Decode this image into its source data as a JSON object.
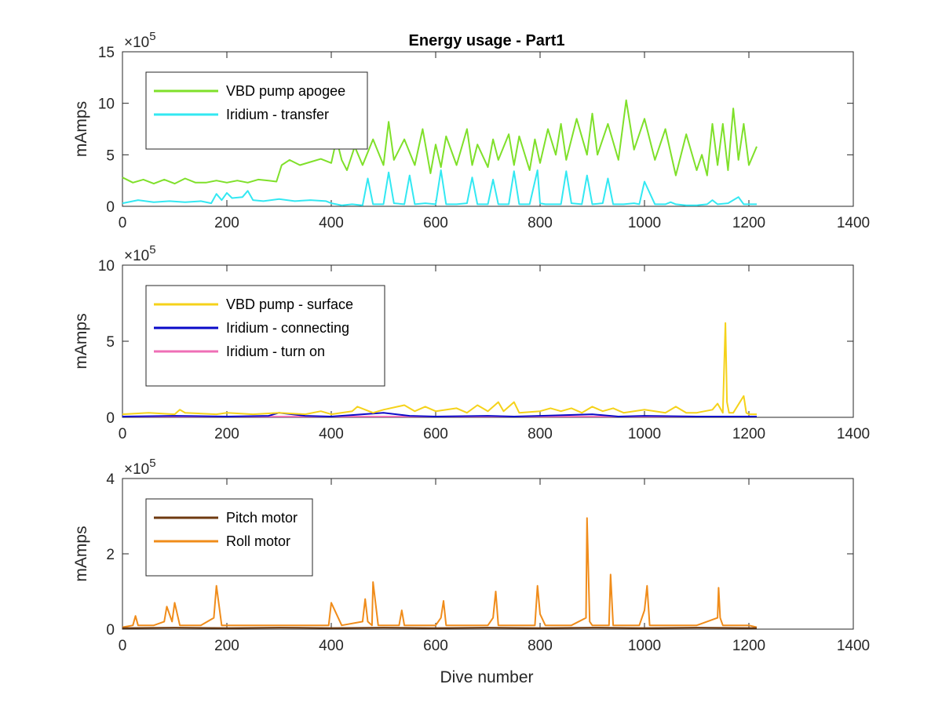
{
  "figure": {
    "title": "Energy usage - Part1",
    "xlabel": "Dive number"
  },
  "chart_data": [
    {
      "type": "line",
      "title": "Energy usage - Part1",
      "xlabel": "",
      "ylabel": "mAmps",
      "y_multiplier": "×10",
      "y_exponent": "5",
      "xlim": [
        0,
        1400
      ],
      "ylim": [
        0,
        15
      ],
      "xticks": [
        "0",
        "200",
        "400",
        "600",
        "800",
        "1000",
        "1200",
        "1400"
      ],
      "yticks": [
        "0",
        "5",
        "10",
        "15"
      ],
      "grid": false,
      "legend_position": "top-left",
      "series": [
        {
          "name": "VBD pump apogee",
          "color": "#7fe02a",
          "x": [
            0,
            20,
            40,
            60,
            80,
            100,
            120,
            140,
            160,
            180,
            200,
            220,
            240,
            260,
            280,
            295,
            305,
            320,
            340,
            360,
            380,
            400,
            410,
            420,
            430,
            445,
            460,
            480,
            500,
            510,
            520,
            540,
            560,
            575,
            590,
            600,
            610,
            620,
            640,
            660,
            670,
            680,
            700,
            710,
            720,
            740,
            750,
            760,
            780,
            790,
            800,
            815,
            830,
            840,
            850,
            870,
            890,
            900,
            910,
            930,
            950,
            965,
            980,
            1000,
            1020,
            1040,
            1060,
            1080,
            1100,
            1110,
            1120,
            1130,
            1140,
            1150,
            1160,
            1170,
            1180,
            1190,
            1200,
            1215
          ],
          "values": [
            2.8,
            2.3,
            2.6,
            2.2,
            2.6,
            2.2,
            2.7,
            2.3,
            2.3,
            2.5,
            2.3,
            2.5,
            2.3,
            2.6,
            2.5,
            2.4,
            4.0,
            4.5,
            4.0,
            4.3,
            4.6,
            4.2,
            6.5,
            4.5,
            3.5,
            5.8,
            4.0,
            6.5,
            4.0,
            8.2,
            4.5,
            6.5,
            4.0,
            7.5,
            3.2,
            6.0,
            3.8,
            6.8,
            4.0,
            7.5,
            4.0,
            6.0,
            3.8,
            6.5,
            4.5,
            7.0,
            4.0,
            6.8,
            3.5,
            6.5,
            4.2,
            7.5,
            5.0,
            8.0,
            4.5,
            8.5,
            5.0,
            9.0,
            5.0,
            8.0,
            4.5,
            10.3,
            5.5,
            8.5,
            4.5,
            7.5,
            3.0,
            7.0,
            3.5,
            5.0,
            3.0,
            8.0,
            4.0,
            8.0,
            3.5,
            9.5,
            4.5,
            8.0,
            4.0,
            5.8
          ]
        },
        {
          "name": "Iridium - transfer",
          "color": "#33e8f2",
          "x": [
            0,
            30,
            60,
            90,
            120,
            150,
            170,
            180,
            190,
            200,
            210,
            230,
            240,
            250,
            270,
            300,
            330,
            360,
            390,
            400,
            420,
            440,
            460,
            470,
            480,
            500,
            510,
            520,
            540,
            550,
            560,
            580,
            600,
            610,
            620,
            640,
            660,
            670,
            680,
            700,
            710,
            720,
            740,
            750,
            760,
            780,
            795,
            800,
            810,
            840,
            850,
            860,
            880,
            890,
            900,
            920,
            930,
            940,
            960,
            980,
            990,
            1000,
            1020,
            1040,
            1050,
            1060,
            1080,
            1100,
            1120,
            1130,
            1140,
            1160,
            1180,
            1190,
            1200,
            1215
          ],
          "values": [
            0.3,
            0.6,
            0.4,
            0.5,
            0.4,
            0.5,
            0.3,
            1.2,
            0.6,
            1.3,
            0.8,
            0.9,
            1.5,
            0.6,
            0.5,
            0.7,
            0.5,
            0.6,
            0.5,
            0.3,
            0.1,
            0.2,
            0.1,
            2.7,
            0.2,
            0.2,
            3.3,
            0.3,
            0.2,
            3.0,
            0.2,
            0.3,
            0.2,
            3.5,
            0.2,
            0.2,
            0.3,
            2.8,
            0.2,
            0.2,
            2.6,
            0.2,
            0.2,
            3.4,
            0.2,
            0.2,
            3.5,
            0.3,
            0.2,
            0.2,
            3.4,
            0.3,
            0.2,
            3.0,
            0.2,
            0.3,
            2.7,
            0.2,
            0.2,
            0.3,
            0.2,
            2.4,
            0.2,
            0.2,
            0.4,
            0.2,
            0.1,
            0.1,
            0.2,
            0.6,
            0.2,
            0.3,
            0.9,
            0.2,
            0.2,
            0.2
          ]
        }
      ]
    },
    {
      "type": "line",
      "xlabel": "",
      "ylabel": "mAmps",
      "y_multiplier": "×10",
      "y_exponent": "5",
      "xlim": [
        0,
        1400
      ],
      "ylim": [
        0,
        10
      ],
      "xticks": [
        "0",
        "200",
        "400",
        "600",
        "800",
        "1000",
        "1200",
        "1400"
      ],
      "yticks": [
        "0",
        "5",
        "10"
      ],
      "grid": false,
      "legend_position": "top-left",
      "series": [
        {
          "name": "VBD pump - surface",
          "color": "#f5d21a",
          "x": [
            0,
            50,
            100,
            110,
            120,
            180,
            200,
            250,
            300,
            350,
            380,
            400,
            440,
            450,
            480,
            500,
            540,
            560,
            580,
            600,
            640,
            660,
            680,
            700,
            720,
            730,
            750,
            760,
            800,
            820,
            840,
            860,
            880,
            900,
            920,
            940,
            960,
            1000,
            1040,
            1060,
            1080,
            1100,
            1130,
            1140,
            1150,
            1155,
            1158,
            1162,
            1170,
            1190,
            1195,
            1200,
            1215
          ],
          "values": [
            0.2,
            0.3,
            0.2,
            0.5,
            0.3,
            0.2,
            0.3,
            0.2,
            0.3,
            0.2,
            0.4,
            0.2,
            0.4,
            0.7,
            0.3,
            0.5,
            0.8,
            0.4,
            0.7,
            0.4,
            0.6,
            0.3,
            0.8,
            0.4,
            1.0,
            0.4,
            1.0,
            0.3,
            0.4,
            0.6,
            0.4,
            0.6,
            0.3,
            0.7,
            0.4,
            0.6,
            0.3,
            0.5,
            0.3,
            0.7,
            0.3,
            0.3,
            0.5,
            0.9,
            0.3,
            6.2,
            1.0,
            0.3,
            0.3,
            1.4,
            0.3,
            0.2,
            0.2
          ]
        },
        {
          "name": "Iridium - connecting",
          "color": "#0a0ac8",
          "x": [
            0,
            100,
            200,
            280,
            300,
            350,
            400,
            500,
            550,
            600,
            700,
            750,
            800,
            900,
            950,
            1000,
            1100,
            1200,
            1215
          ],
          "values": [
            0.05,
            0.1,
            0.05,
            0.1,
            0.3,
            0.1,
            0.05,
            0.3,
            0.1,
            0.05,
            0.1,
            0.05,
            0.1,
            0.2,
            0.05,
            0.1,
            0.05,
            0.05,
            0.05
          ]
        },
        {
          "name": "Iridium - turn on",
          "color": "#ef6fb6",
          "x": [
            0,
            200,
            400,
            600,
            800,
            1000,
            1215
          ],
          "values": [
            0.05,
            0.05,
            0.05,
            0.05,
            0.05,
            0.05,
            0.05
          ]
        }
      ]
    },
    {
      "type": "line",
      "xlabel": "Dive number",
      "ylabel": "mAmps",
      "y_multiplier": "×10",
      "y_exponent": "5",
      "xlim": [
        0,
        1400
      ],
      "ylim": [
        0,
        4
      ],
      "xticks": [
        "0",
        "200",
        "400",
        "600",
        "800",
        "1000",
        "1200",
        "1400"
      ],
      "yticks": [
        "0",
        "2",
        "4"
      ],
      "grid": false,
      "legend_position": "top-left",
      "series": [
        {
          "name": "Pitch motor",
          "color": "#6e3a10",
          "x": [
            0,
            100,
            200,
            300,
            400,
            500,
            600,
            700,
            800,
            900,
            1000,
            1100,
            1215
          ],
          "values": [
            0.03,
            0.04,
            0.03,
            0.04,
            0.03,
            0.04,
            0.03,
            0.04,
            0.03,
            0.04,
            0.03,
            0.04,
            0.03
          ]
        },
        {
          "name": "Roll motor",
          "color": "#f08c1a",
          "x": [
            0,
            20,
            25,
            30,
            60,
            80,
            85,
            95,
            100,
            110,
            150,
            175,
            180,
            190,
            250,
            300,
            350,
            395,
            400,
            420,
            460,
            465,
            470,
            478,
            480,
            490,
            530,
            535,
            540,
            600,
            610,
            615,
            620,
            700,
            710,
            715,
            720,
            790,
            795,
            800,
            810,
            860,
            888,
            890,
            895,
            900,
            932,
            935,
            940,
            990,
            1000,
            1005,
            1010,
            1100,
            1140,
            1142,
            1145,
            1150,
            1200,
            1215
          ],
          "values": [
            0.05,
            0.1,
            0.35,
            0.1,
            0.1,
            0.2,
            0.6,
            0.2,
            0.7,
            0.1,
            0.1,
            0.3,
            1.15,
            0.1,
            0.1,
            0.1,
            0.1,
            0.1,
            0.7,
            0.1,
            0.2,
            0.8,
            0.2,
            0.1,
            1.25,
            0.1,
            0.1,
            0.5,
            0.1,
            0.1,
            0.3,
            0.75,
            0.1,
            0.1,
            0.3,
            1.0,
            0.1,
            0.1,
            1.15,
            0.4,
            0.1,
            0.1,
            0.3,
            2.95,
            0.2,
            0.1,
            0.1,
            1.45,
            0.1,
            0.1,
            0.5,
            1.15,
            0.1,
            0.1,
            0.3,
            1.1,
            0.3,
            0.1,
            0.1,
            0.05
          ]
        }
      ]
    }
  ]
}
